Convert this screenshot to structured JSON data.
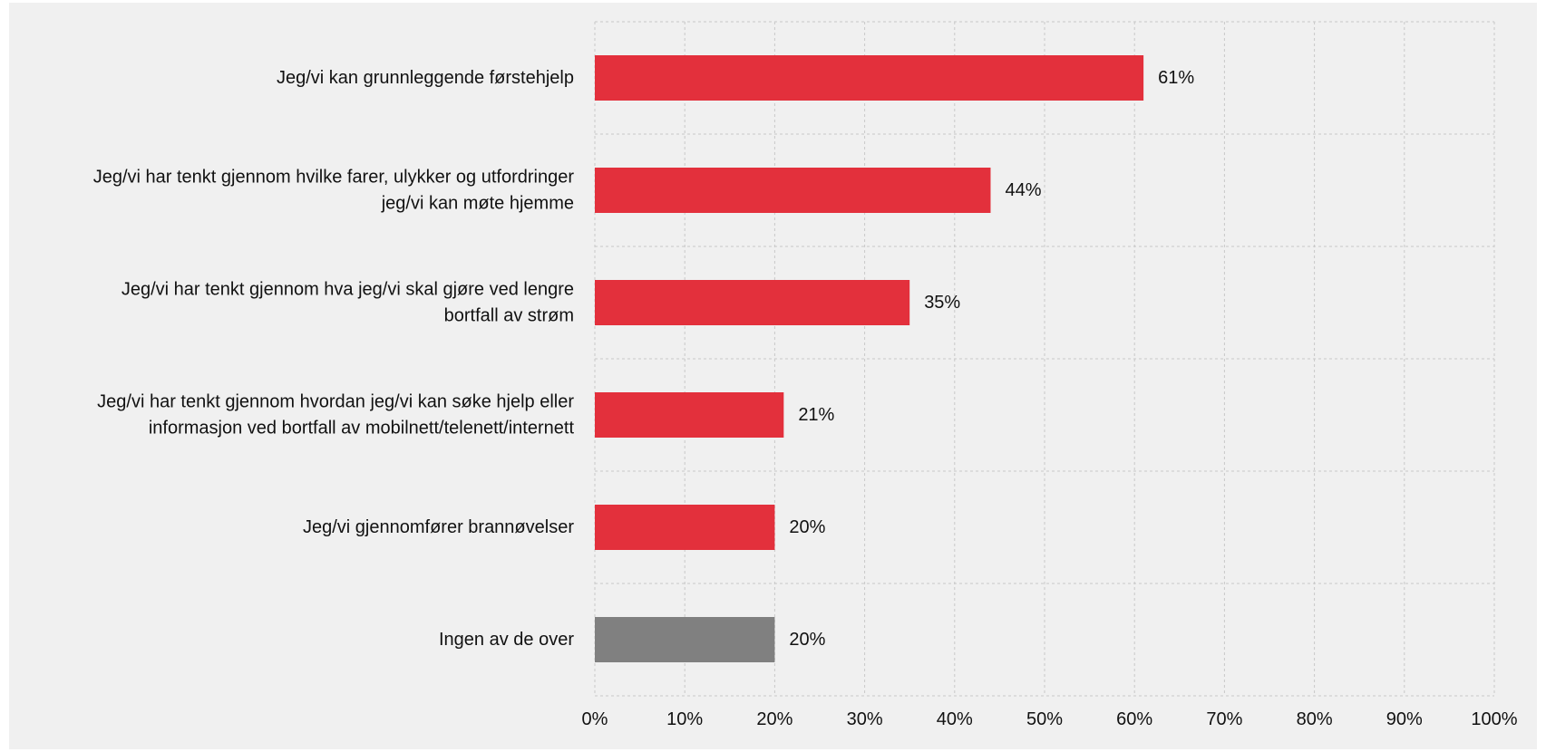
{
  "chart_data": {
    "type": "bar",
    "orientation": "horizontal",
    "title": "",
    "xlabel": "",
    "ylabel": "",
    "categories": [
      "Jeg/vi kan grunnleggende førstehjelp",
      "Jeg/vi har tenkt gjennom hvilke farer, ulykker og utfordringer jeg/vi kan møte hjemme",
      "Jeg/vi har tenkt gjennom hva jeg/vi skal gjøre ved lengre bortfall av strøm",
      "Jeg/vi har tenkt gjennom hvordan jeg/vi kan søke hjelp eller informasjon ved bortfall av mobilnett/telenett/internett",
      "Jeg/vi gjennomfører brannøvelser",
      "Ingen av de over"
    ],
    "category_lines": [
      [
        "Jeg/vi kan grunnleggende førstehjelp"
      ],
      [
        "Jeg/vi har tenkt gjennom hvilke farer, ulykker og utfordringer",
        "jeg/vi kan møte hjemme"
      ],
      [
        "Jeg/vi har tenkt gjennom hva jeg/vi skal gjøre ved lengre",
        "bortfall av strøm"
      ],
      [
        "Jeg/vi har tenkt gjennom hvordan jeg/vi kan søke hjelp eller",
        "informasjon ved bortfall av mobilnett/telenett/internett"
      ],
      [
        "Jeg/vi gjennomfører brannøvelser"
      ],
      [
        "Ingen av de over"
      ]
    ],
    "values": [
      61,
      44,
      35,
      21,
      20,
      20
    ],
    "value_labels": [
      "61%",
      "44%",
      "35%",
      "21%",
      "20%",
      "20%"
    ],
    "bar_colors": [
      "#e3303c",
      "#e3303c",
      "#e3303c",
      "#e3303c",
      "#e3303c",
      "#808080"
    ],
    "xlim": [
      0,
      100
    ],
    "x_ticks": [
      0,
      10,
      20,
      30,
      40,
      50,
      60,
      70,
      80,
      90,
      100
    ],
    "x_tick_labels": [
      "0%",
      "10%",
      "20%",
      "30%",
      "40%",
      "50%",
      "60%",
      "70%",
      "80%",
      "90%",
      "100%"
    ],
    "grid": true,
    "legend": false,
    "colors": {
      "background": "#f0f0f0",
      "gridline": "#c8c8c8",
      "primary_bar": "#e3303c",
      "secondary_bar": "#808080"
    }
  }
}
